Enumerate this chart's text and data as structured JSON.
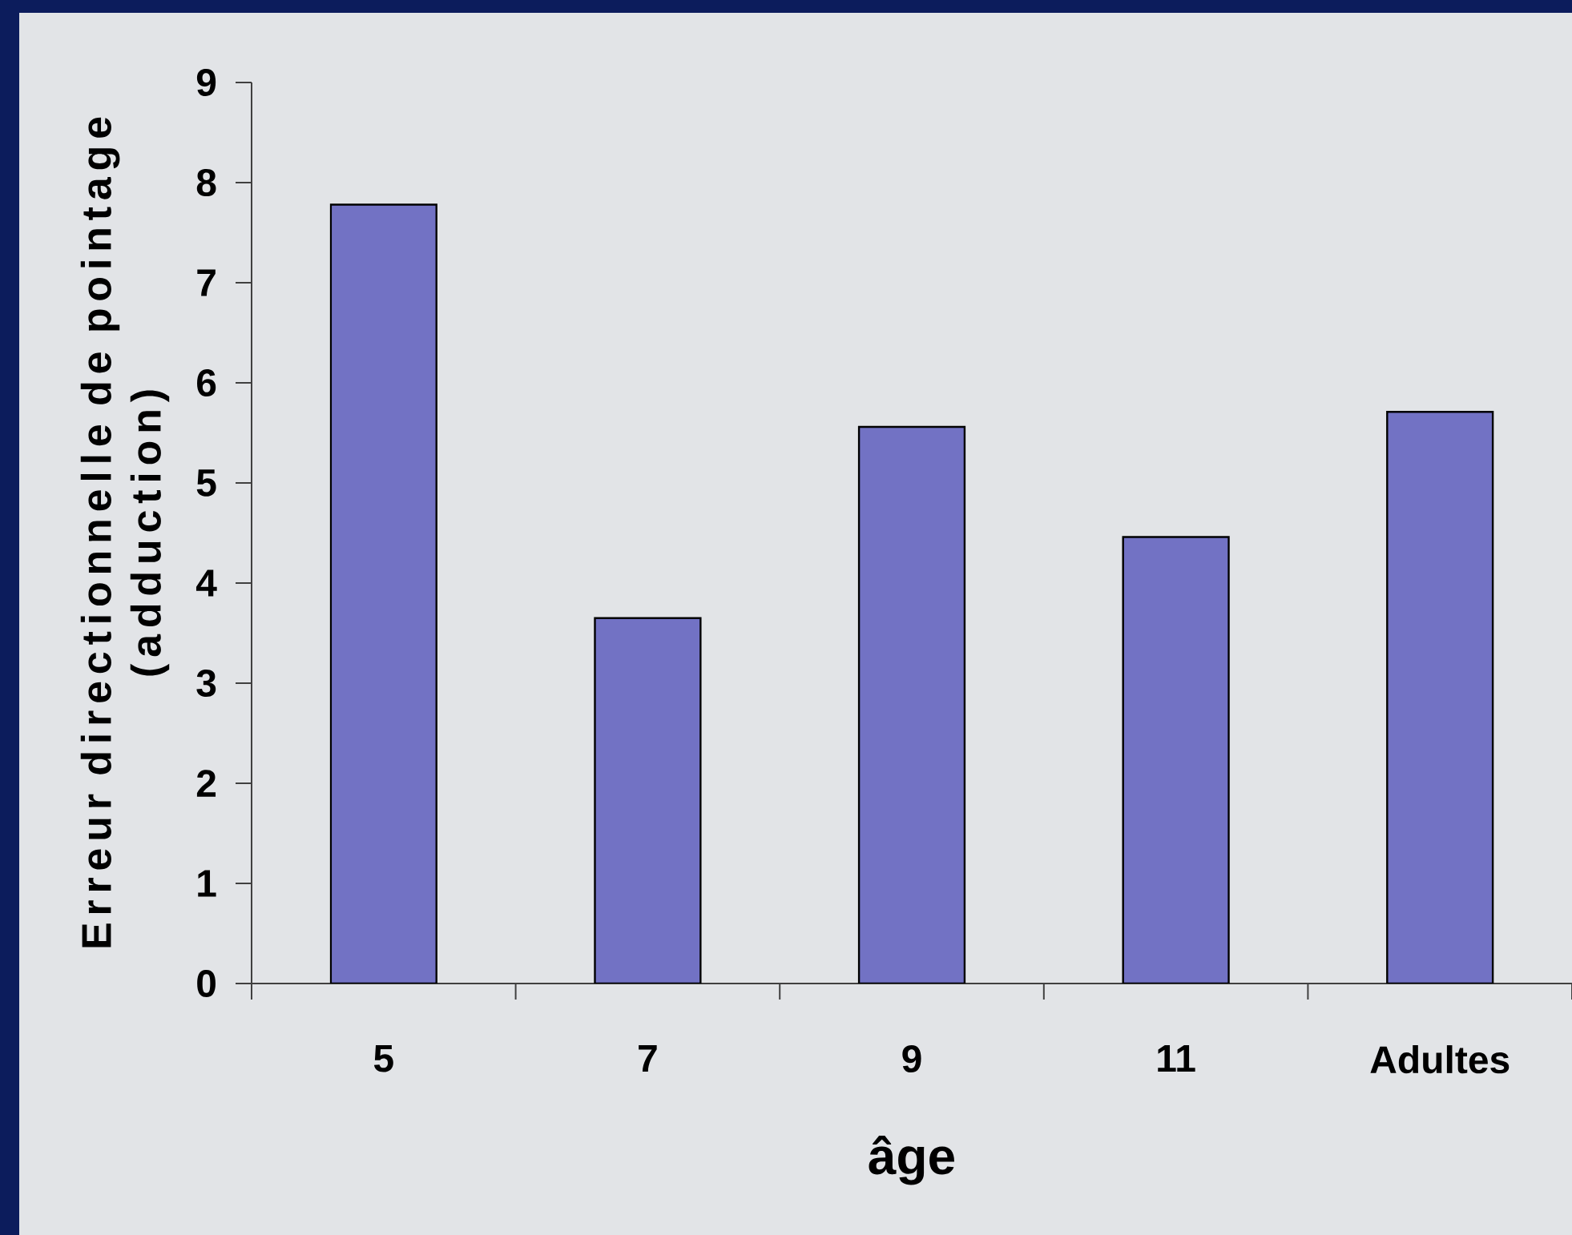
{
  "chart_data": {
    "type": "bar",
    "xlabel": "âge",
    "ylabel": "Erreur directionnelle de pointage (adduction)",
    "categories": [
      "5",
      "7",
      "9",
      "11",
      "Adultes"
    ],
    "values": [
      7.78,
      3.65,
      5.56,
      4.46,
      5.71
    ],
    "color": "#7272c4",
    "ylim": [
      0,
      9
    ],
    "yticks": [
      0,
      1,
      2,
      3,
      4,
      5,
      6,
      7,
      8,
      9
    ]
  }
}
